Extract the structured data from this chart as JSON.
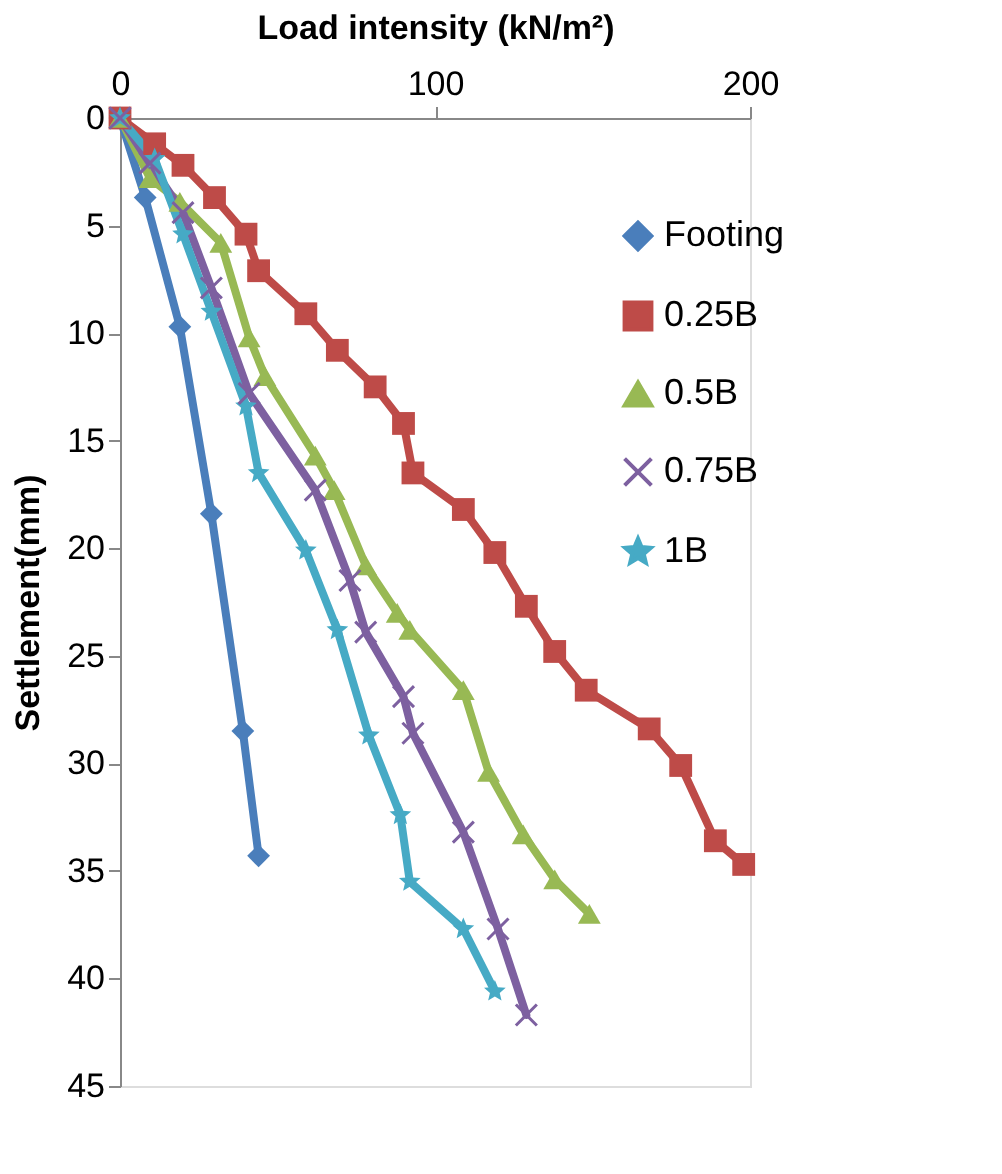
{
  "chart_data": {
    "type": "line",
    "xlabel": "Load intensity (kN/m²)",
    "ylabel": "Settlement(mm)",
    "xlim": [
      0,
      200
    ],
    "xticks": [
      0,
      100,
      200
    ],
    "ylim": [
      45,
      0
    ],
    "yticks": [
      0,
      5,
      10,
      15,
      20,
      25,
      30,
      35,
      40,
      45
    ],
    "grid": false,
    "legend": "right",
    "series": [
      {
        "name": "Footing",
        "color": "#4a7ebb",
        "marker": "diamond",
        "x": [
          0,
          8,
          19,
          29,
          39,
          44
        ],
        "values": [
          0,
          3.7,
          9.7,
          18.4,
          28.5,
          34.3
        ]
      },
      {
        "name": "0.25B",
        "color": "#be4b48",
        "marker": "square",
        "x": [
          0,
          11,
          20,
          30,
          40,
          44,
          59,
          69,
          81,
          90,
          93,
          109,
          119,
          129,
          138,
          148,
          168,
          178,
          189,
          198
        ],
        "values": [
          0,
          1.2,
          2.2,
          3.7,
          5.4,
          7.1,
          9.1,
          10.8,
          12.5,
          14.2,
          16.5,
          18.2,
          20.2,
          22.7,
          24.8,
          26.6,
          28.4,
          30.1,
          33.6,
          34.7
        ]
      },
      {
        "name": "0.5B",
        "color": "#98b954",
        "marker": "triangle",
        "x": [
          0,
          9.5,
          19,
          32,
          41,
          46,
          62,
          68,
          78,
          88,
          92,
          109,
          117,
          128,
          138,
          149
        ],
        "values": [
          0,
          2.8,
          3.9,
          5.8,
          10.2,
          12,
          15.7,
          17.3,
          20.8,
          23,
          23.8,
          26.6,
          30.4,
          33.3,
          35.4,
          37
        ]
      },
      {
        "name": "0.75B",
        "color": "#7d60a0",
        "marker": "cross",
        "x": [
          0,
          9.5,
          20,
          29,
          41,
          62,
          73,
          78,
          90,
          93,
          109,
          120,
          129
        ],
        "values": [
          0,
          2.1,
          4.4,
          7.9,
          12.8,
          17.3,
          21.5,
          23.9,
          26.9,
          28.6,
          33.2,
          37.7,
          41.7
        ]
      },
      {
        "name": "1B",
        "color": "#46aac5",
        "marker": "star",
        "x": [
          0,
          11,
          20,
          29,
          40,
          44,
          59,
          69,
          79,
          89,
          92,
          109,
          119
        ],
        "values": [
          0,
          1.9,
          5.4,
          9,
          13.4,
          16.5,
          20.1,
          23.8,
          28.7,
          32.4,
          35.5,
          37.7,
          40.6
        ]
      }
    ]
  }
}
